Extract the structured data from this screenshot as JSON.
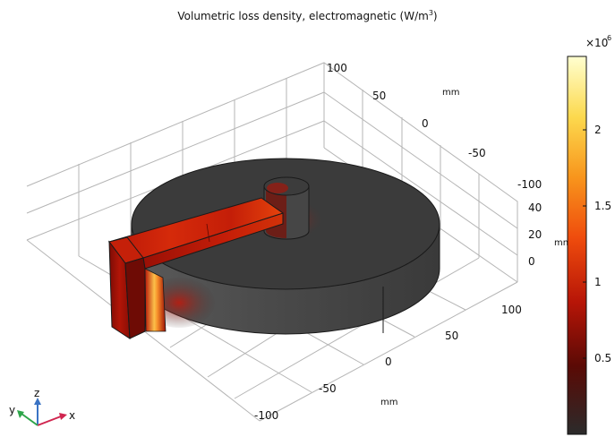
{
  "plot": {
    "title_main": "Volumetric loss density, electromagnetic (W/m",
    "title_sup": "3",
    "title_close": ")"
  },
  "axes": {
    "x_ticks": [
      "100",
      "50",
      "0",
      "-50",
      "-100"
    ],
    "y_ticks": [
      "100",
      "50",
      "0",
      "-50",
      "-100"
    ],
    "z_ticks": [
      "40",
      "20",
      "0"
    ],
    "x_unit": "mm",
    "y_unit": "mm",
    "z_unit": "mm"
  },
  "colorbar": {
    "exponent": "×10",
    "exponent_power": "6",
    "ticks": [
      "2",
      "1.5",
      "1",
      "0.5"
    ],
    "colors": [
      "#2b2b2b",
      "#7a0b06",
      "#d81c08",
      "#f25a0e",
      "#f89a1c",
      "#fde25a",
      "#ffffc8"
    ]
  },
  "triad": {
    "x": "x",
    "y": "y",
    "z": "z",
    "x_color": "#d0254f",
    "y_color": "#2ea54a",
    "z_color": "#3a73c4"
  }
}
